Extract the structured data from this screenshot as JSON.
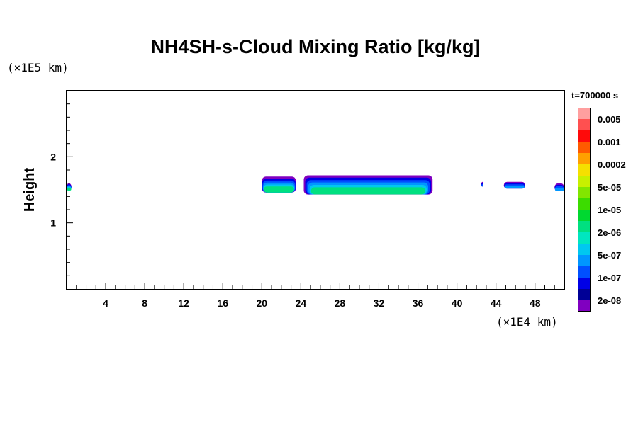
{
  "chart_data": {
    "type": "heatmap",
    "title": "NH4SH-s-Cloud Mixing Ratio [kg/kg]",
    "xlabel": "",
    "ylabel": "Height",
    "x_unit": "(×1E4 km)",
    "y_unit": "(×1E5 km)",
    "time": "t=700000 s",
    "xlim": [
      0,
      51
    ],
    "ylim": [
      0,
      3
    ],
    "x_ticks": [
      "4",
      "8",
      "12",
      "16",
      "20",
      "24",
      "28",
      "32",
      "36",
      "40",
      "44",
      "48"
    ],
    "y_ticks": [
      "1",
      "2"
    ],
    "colorbar": {
      "colors": [
        "#ff9f9f",
        "#ff5050",
        "#ff0a0a",
        "#ff5a00",
        "#ffa000",
        "#f5e000",
        "#c8f000",
        "#82e600",
        "#3cdc00",
        "#00d830",
        "#00e080",
        "#00e6c0",
        "#00c8f0",
        "#0096ff",
        "#0050ff",
        "#0000e6",
        "#000096",
        "#8000c0"
      ],
      "labels": [
        "0.005",
        "0.001",
        "0.0002",
        "5e-05",
        "1e-05",
        "2e-06",
        "5e-07",
        "1e-07",
        "2e-08"
      ]
    },
    "cloud_layers": [
      {
        "x_start": 0,
        "x_end": 0.5,
        "y_bottom": 1.49,
        "y_top": 1.6,
        "max_level": "1e-05"
      },
      {
        "x_start": 20,
        "x_end": 23.5,
        "y_bottom": 1.46,
        "y_top": 1.7,
        "max_level": "1e-05"
      },
      {
        "x_start": 24.3,
        "x_end": 37.5,
        "y_bottom": 1.43,
        "y_top": 1.72,
        "max_level": "1e-05"
      },
      {
        "x_start": 42.5,
        "x_end": 42.7,
        "y_bottom": 1.55,
        "y_top": 1.62,
        "max_level": "1e-07"
      },
      {
        "x_start": 44.8,
        "x_end": 47,
        "y_bottom": 1.52,
        "y_top": 1.62,
        "max_level": "5e-07"
      },
      {
        "x_start": 50,
        "x_end": 51,
        "y_bottom": 1.48,
        "y_top": 1.6,
        "max_level": "5e-07"
      }
    ]
  }
}
